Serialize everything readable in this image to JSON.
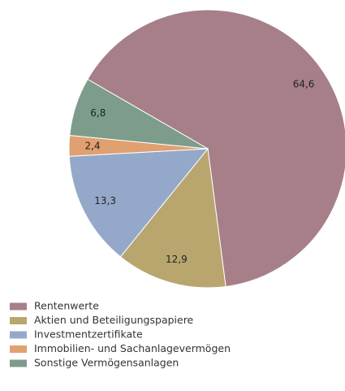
{
  "chart_data": {
    "type": "pie",
    "categories": [
      "Rentenwerte",
      "Aktien und Beteiligungspapiere",
      "Investmentzertifikate",
      "Immobilien- und Sachanlagevermögen",
      "Sonstige Vermögensanlagen"
    ],
    "values": [
      64.6,
      12.9,
      13.3,
      2.4,
      6.8
    ],
    "value_labels": [
      "64,6",
      "12,9",
      "13,3",
      "2,4",
      "6,8"
    ],
    "colors": [
      "#a67f89",
      "#b9a66e",
      "#94a9c9",
      "#e0a070",
      "#7d9c8c"
    ]
  }
}
